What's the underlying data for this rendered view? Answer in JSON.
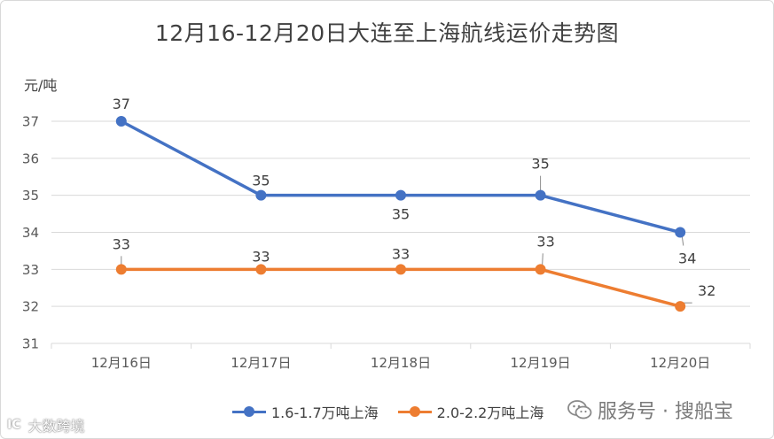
{
  "chart_data": {
    "type": "line",
    "title": "12月16-12月20日大连至上海航线运价走势图",
    "ylabel": "元/吨",
    "xlabel": "",
    "categories": [
      "12月16日",
      "12月17日",
      "12月18日",
      "12月19日",
      "12月20日"
    ],
    "ylim": [
      31,
      37
    ],
    "yticks": [
      31,
      32,
      33,
      34,
      35,
      36,
      37
    ],
    "grid": true,
    "legend_position": "bottom",
    "series": [
      {
        "name": "1.6-1.7万吨上海",
        "color": "#4472c4",
        "values": [
          37,
          35,
          35,
          35,
          34
        ]
      },
      {
        "name": "2.0-2.2万吨上海",
        "color": "#ed7d31",
        "values": [
          33,
          33,
          33,
          33,
          32
        ]
      }
    ]
  },
  "watermark": {
    "right_text": "服务号 · 搜船宝",
    "left_badge": "IC",
    "left_text": "大数跨境",
    "icon": "wechat-icon"
  },
  "colors": {
    "grid": "#d9d9d9",
    "axis_text": "#595959",
    "text": "#404040"
  }
}
